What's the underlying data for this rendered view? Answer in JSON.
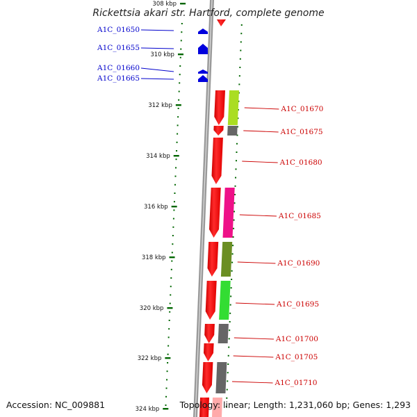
{
  "title": "Rickettsia akari str. Hartford, complete genome",
  "footer": {
    "accession": "Accession: NC_009881",
    "summary": "Topology: linear; Length: 1,231,060 bp; Genes: 1,293"
  },
  "axis": {
    "unit": "kbp",
    "tick_labels": [
      "308 kbp",
      "310 kbp",
      "312 kbp",
      "314 kbp",
      "316 kbp",
      "318 kbp",
      "320 kbp",
      "322 kbp",
      "324 kbp"
    ]
  },
  "reverse_strand_genes": [
    {
      "id": "A1C_01650",
      "color": "#0000dd"
    },
    {
      "id": "A1C_01655",
      "color": "#0000dd"
    },
    {
      "id": "A1C_01660",
      "color": "#0000dd"
    },
    {
      "id": "A1C_01665",
      "color": "#0000dd"
    }
  ],
  "forward_strand_genes": [
    {
      "id": "A1C_01670",
      "color": "#ff0000",
      "category_color": "#aadd22"
    },
    {
      "id": "A1C_01675",
      "color": "#ff0000",
      "category_color": "#666666"
    },
    {
      "id": "A1C_01680",
      "color": "#ff0000",
      "category_color": ""
    },
    {
      "id": "A1C_01685",
      "color": "#ff0000",
      "category_color": "#ee1188"
    },
    {
      "id": "A1C_01690",
      "color": "#ff0000",
      "category_color": "#6b8e23"
    },
    {
      "id": "A1C_01695",
      "color": "#ff0000",
      "category_color": "#33dd33"
    },
    {
      "id": "A1C_01700",
      "color": "#ff0000",
      "category_color": "#666666"
    },
    {
      "id": "A1C_01705",
      "color": "#ff0000",
      "category_color": ""
    },
    {
      "id": "A1C_01710",
      "color": "#ff0000",
      "category_color": "#666666"
    }
  ],
  "colors": {
    "forward_gene": "#ff0000",
    "reverse_gene": "#0000dd",
    "ruler_ticks": "#006600",
    "backbone": "#999999",
    "forward_label": "#cc0000",
    "reverse_label": "#0000cc"
  }
}
